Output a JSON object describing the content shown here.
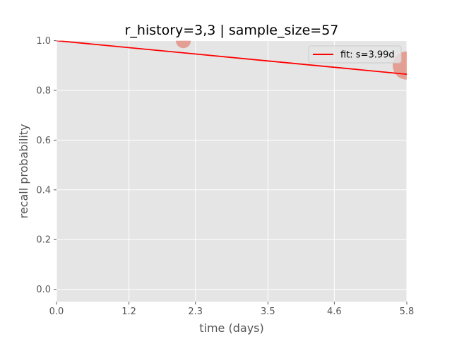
{
  "chart_data": {
    "type": "scatter",
    "title": "r_history=3,3 | sample_size=57",
    "xlabel": "time (days)",
    "ylabel": "recall probability",
    "xlim": [
      0.0,
      5.8
    ],
    "ylim": [
      -0.05,
      1.0
    ],
    "x_ticks": [
      "0.0",
      "1.2",
      "2.3",
      "3.5",
      "4.6",
      "5.8"
    ],
    "y_ticks": [
      "0.0",
      "0.2",
      "0.4",
      "0.6",
      "0.8",
      "1.0"
    ],
    "grid": true,
    "legend_position": "top-right",
    "series": [
      {
        "name": "fit: s=3.99d",
        "kind": "line",
        "color": "#ff0000",
        "x": [
          0.0,
          5.8
        ],
        "y": [
          1.0,
          0.865
        ]
      },
      {
        "kind": "scatter",
        "color": "#e24a33",
        "points": [
          {
            "x": 2.1,
            "y": 1.0,
            "weight": 0.2
          },
          {
            "x": 5.8,
            "y": 0.9,
            "weight": 1.0
          }
        ]
      }
    ],
    "colors": {
      "plot_background": "#e5e5e5",
      "grid": "#ffffff",
      "scatter": "#e24a33",
      "fit_line": "#ff0000"
    }
  }
}
